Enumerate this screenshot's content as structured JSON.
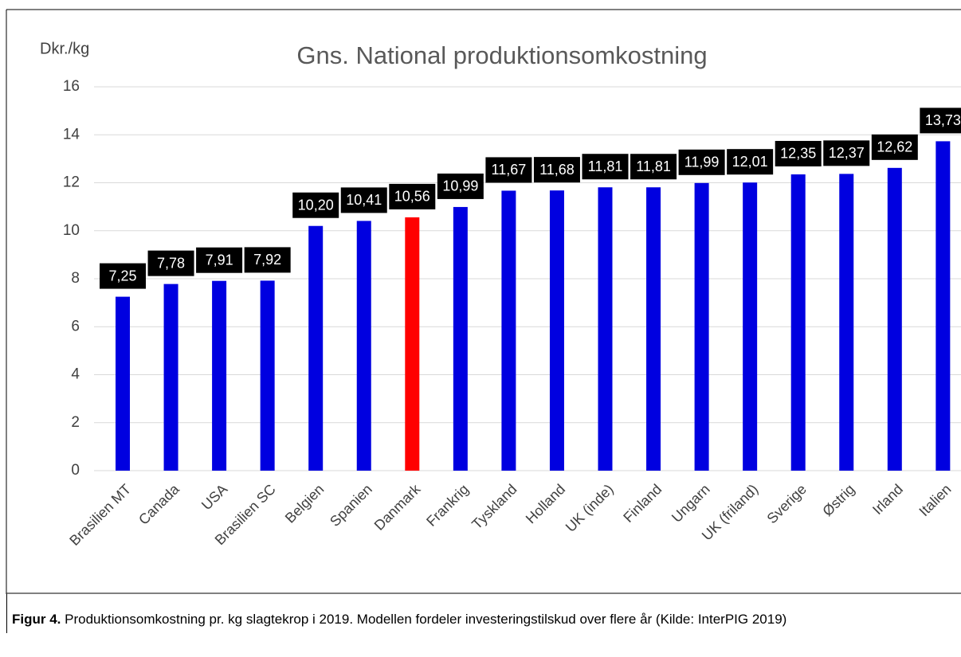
{
  "chart_data": {
    "type": "bar",
    "title": "Gns. National produktionsomkostning",
    "y_label": "Dkr./kg",
    "categories": [
      "Brasilien MT",
      "Canada",
      "USA",
      "Brasilien SC",
      "Belgien",
      "Spanien",
      "Danmark",
      "Frankrig",
      "Tyskland",
      "Holland",
      "UK (inde)",
      "Finland",
      "Ungarn",
      "UK (friland)",
      "Sverige",
      "Østrig",
      "Irland",
      "Italien"
    ],
    "values": [
      7.25,
      7.78,
      7.91,
      7.92,
      10.2,
      10.41,
      10.56,
      10.99,
      11.67,
      11.68,
      11.81,
      11.81,
      11.99,
      12.01,
      12.35,
      12.37,
      12.62,
      13.73
    ],
    "value_labels": [
      "7,25",
      "7,78",
      "7,91",
      "7,92",
      "10,20",
      "10,41",
      "10,56",
      "10,99",
      "11,67",
      "11,68",
      "11,81",
      "11,81",
      "11,99",
      "12,01",
      "12,35",
      "12,37",
      "12,62",
      "13,73"
    ],
    "colors": [
      "#0000e0",
      "#0000e0",
      "#0000e0",
      "#0000e0",
      "#0000e0",
      "#0000e0",
      "#ff0000",
      "#0000e0",
      "#0000e0",
      "#0000e0",
      "#0000e0",
      "#0000e0",
      "#0000e0",
      "#0000e0",
      "#0000e0",
      "#0000e0",
      "#0000e0",
      "#0000e0"
    ],
    "ylim": [
      0,
      16
    ],
    "yticks": [
      0,
      2,
      4,
      6,
      8,
      10,
      12,
      14,
      16
    ],
    "grid": true
  },
  "caption": {
    "label": "Figur 4.",
    "text": " Produktionsomkostning pr. kg slagtekrop i 2019. Modellen fordeler investeringstilskud over flere år (Kilde: InterPIG 2019)"
  }
}
